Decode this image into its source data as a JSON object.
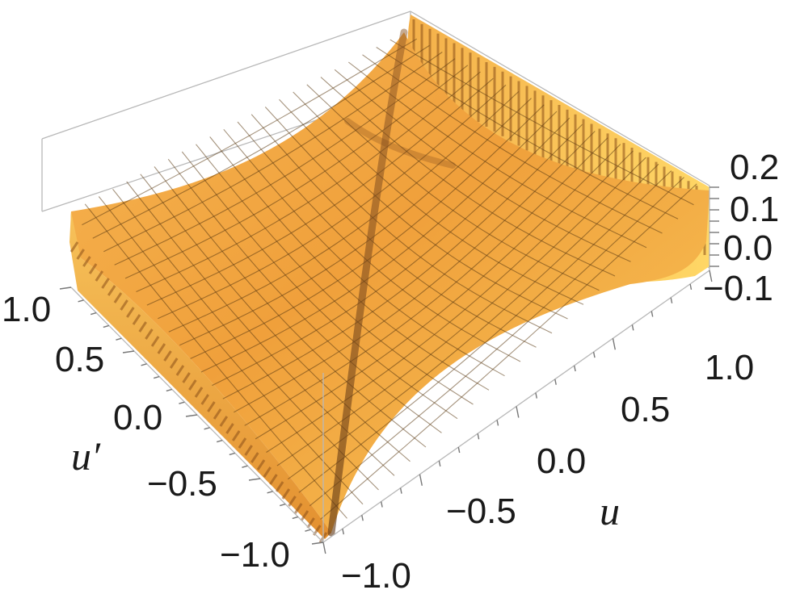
{
  "chart_data": {
    "type": "surface3d",
    "title": "",
    "xlabel": "u",
    "ylabel": "u′",
    "zlabel": "",
    "x_ticks": [
      "−1.0",
      "−0.5",
      "0.0",
      "0.5",
      "1.0"
    ],
    "y_ticks": [
      "−1.0",
      "−0.5",
      "0.0",
      "0.5",
      "1.0"
    ],
    "z_ticks": [
      "−0.1",
      "0.0",
      "0.1",
      "0.2"
    ],
    "xlim": [
      -1,
      1
    ],
    "ylim": [
      -1,
      1
    ],
    "zlim": [
      -0.15,
      0.22
    ],
    "surface_color": "#f2a23a",
    "highlight_color": "#ffd45e",
    "shadow_color": "#a9631a",
    "mesh": true,
    "box": true,
    "features": "surface rises steeply at u′ = ±1 with comb-like ridges; dark diagonal crease along u = −u′"
  }
}
